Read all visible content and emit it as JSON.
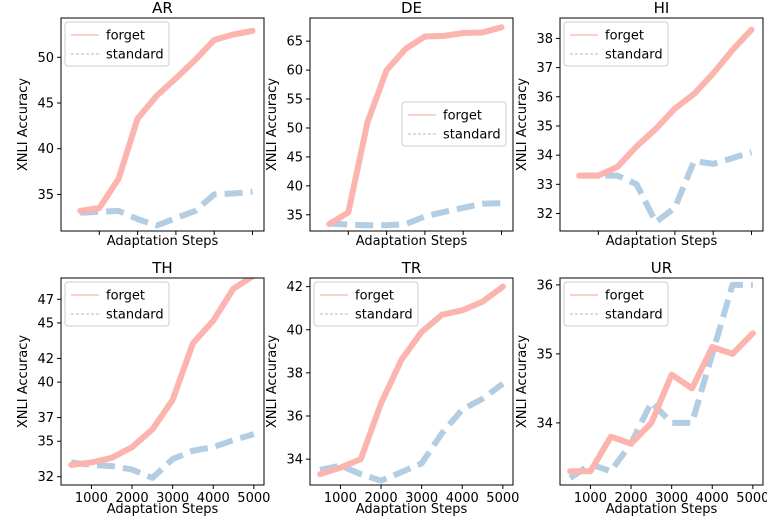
{
  "chart_data": [
    {
      "type": "line",
      "title": "AR",
      "xlabel": "Adaptation Steps",
      "ylabel": "XNLI Accuracy",
      "x": [
        500,
        1000,
        1500,
        2000,
        2500,
        3000,
        3500,
        4000,
        4500,
        5000
      ],
      "xlim": [
        0,
        5300
      ],
      "ylim": [
        31.0,
        54.3
      ],
      "yticks": [
        35,
        40,
        45,
        50
      ],
      "show_xtick_labels": false,
      "legend": "top-left",
      "series": [
        {
          "name": "forget",
          "style": "solid",
          "color": "#fbb4ae",
          "values": [
            33.2,
            33.5,
            36.7,
            43.3,
            45.8,
            47.7,
            49.7,
            51.9,
            52.5,
            52.9
          ]
        },
        {
          "name": "standard",
          "style": "dashed",
          "color": "#b3cde3",
          "values": [
            33.0,
            33.1,
            33.2,
            32.3,
            31.6,
            32.4,
            33.2,
            35.0,
            35.1,
            35.3
          ]
        }
      ]
    },
    {
      "type": "line",
      "title": "DE",
      "xlabel": "Adaptation Steps",
      "ylabel": "XNLI Accuracy",
      "x": [
        500,
        1000,
        1500,
        2000,
        2500,
        3000,
        3500,
        4000,
        4500,
        5000
      ],
      "xlim": [
        0,
        5300
      ],
      "ylim": [
        32.2,
        69.0
      ],
      "yticks": [
        35,
        40,
        45,
        50,
        55,
        60,
        65
      ],
      "show_xtick_labels": false,
      "legend": "center-right",
      "series": [
        {
          "name": "forget",
          "style": "solid",
          "color": "#fbb4ae",
          "values": [
            33.4,
            35.4,
            51.0,
            60.0,
            63.7,
            65.8,
            65.9,
            66.4,
            66.5,
            67.4
          ]
        },
        {
          "name": "standard",
          "style": "dashed",
          "color": "#b3cde3",
          "values": [
            33.5,
            33.3,
            33.2,
            33.2,
            33.4,
            34.7,
            35.5,
            36.2,
            36.9,
            37.0
          ]
        }
      ]
    },
    {
      "type": "line",
      "title": "HI",
      "xlabel": "Adaptation Steps",
      "ylabel": "XNLI Accuracy",
      "x": [
        500,
        1000,
        1500,
        2000,
        2500,
        3000,
        3500,
        4000,
        4500,
        5000
      ],
      "xlim": [
        0,
        5300
      ],
      "ylim": [
        31.4,
        38.7
      ],
      "yticks": [
        32,
        33,
        34,
        35,
        36,
        37,
        38
      ],
      "show_xtick_labels": false,
      "legend": "top-left",
      "series": [
        {
          "name": "forget",
          "style": "solid",
          "color": "#fbb4ae",
          "values": [
            33.3,
            33.3,
            33.6,
            34.3,
            34.9,
            35.6,
            36.1,
            36.8,
            37.6,
            38.3
          ]
        },
        {
          "name": "standard",
          "style": "dashed",
          "color": "#b3cde3",
          "values": [
            33.3,
            33.3,
            33.3,
            33.0,
            31.7,
            32.2,
            33.8,
            33.7,
            33.9,
            34.1
          ]
        }
      ]
    },
    {
      "type": "line",
      "title": "TH",
      "xlabel": "Adaptation Steps",
      "ylabel": "XNLI Accuracy",
      "x": [
        500,
        1000,
        1500,
        2000,
        2500,
        3000,
        3500,
        4000,
        4500,
        5000
      ],
      "xlim": [
        250,
        5250
      ],
      "ylim": [
        31.3,
        48.8
      ],
      "yticks": [
        32,
        35,
        37,
        40,
        42,
        45,
        47
      ],
      "xticks": [
        1000,
        2000,
        3000,
        4000,
        5000
      ],
      "show_xtick_labels": true,
      "legend": "top-left",
      "series": [
        {
          "name": "forget",
          "style": "solid",
          "color": "#fbb4ae",
          "values": [
            33.0,
            33.2,
            33.6,
            34.5,
            36.0,
            38.5,
            43.3,
            45.2,
            47.9,
            49.0
          ]
        },
        {
          "name": "standard",
          "style": "dashed",
          "color": "#b3cde3",
          "values": [
            33.2,
            33.0,
            32.9,
            32.6,
            31.9,
            33.5,
            34.2,
            34.5,
            35.1,
            35.6
          ]
        }
      ]
    },
    {
      "type": "line",
      "title": "TR",
      "xlabel": "Adaptation Steps",
      "ylabel": "XNLI Accuracy",
      "x": [
        500,
        1000,
        1500,
        2000,
        2500,
        3000,
        3500,
        4000,
        4500,
        5000
      ],
      "xlim": [
        250,
        5250
      ],
      "ylim": [
        32.8,
        42.4
      ],
      "yticks": [
        34,
        36,
        38,
        40,
        42
      ],
      "xticks": [
        1000,
        2000,
        3000,
        4000,
        5000
      ],
      "show_xtick_labels": true,
      "legend": "top-left",
      "series": [
        {
          "name": "forget",
          "style": "solid",
          "color": "#fbb4ae",
          "values": [
            33.3,
            33.6,
            34.0,
            36.6,
            38.6,
            39.9,
            40.7,
            40.9,
            41.3,
            42.0
          ]
        },
        {
          "name": "standard",
          "style": "dashed",
          "color": "#b3cde3",
          "values": [
            33.5,
            33.7,
            33.3,
            33.0,
            33.4,
            33.8,
            35.2,
            36.3,
            36.8,
            37.5
          ]
        }
      ]
    },
    {
      "type": "line",
      "title": "UR",
      "xlabel": "Adaptation Steps",
      "ylabel": "XNLI Accuracy",
      "x": [
        500,
        1000,
        1500,
        2000,
        2500,
        3000,
        3500,
        4000,
        4500,
        5000
      ],
      "xlim": [
        250,
        5250
      ],
      "ylim": [
        33.1,
        36.1
      ],
      "yticks": [
        34,
        35,
        36
      ],
      "xticks": [
        1000,
        2000,
        3000,
        4000,
        5000
      ],
      "show_xtick_labels": true,
      "legend": "top-left",
      "series": [
        {
          "name": "forget",
          "style": "solid",
          "color": "#fbb4ae",
          "values": [
            33.3,
            33.3,
            33.8,
            33.7,
            34.0,
            34.7,
            34.5,
            35.1,
            35.0,
            35.3
          ]
        },
        {
          "name": "standard",
          "style": "dashed",
          "color": "#b3cde3",
          "values": [
            33.2,
            33.4,
            33.3,
            33.7,
            34.3,
            34.0,
            34.0,
            35.0,
            36.0,
            36.0
          ]
        }
      ]
    }
  ]
}
